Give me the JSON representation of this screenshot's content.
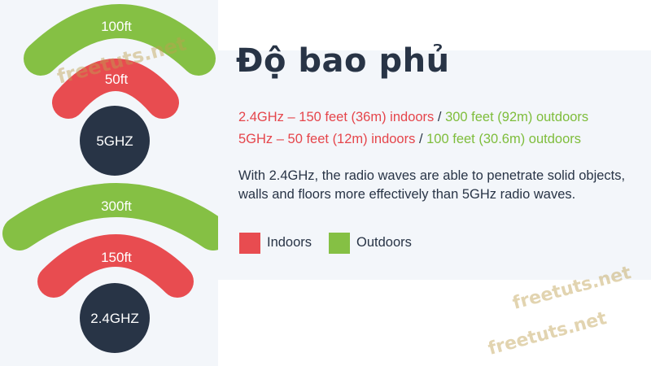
{
  "diagram": {
    "ghz5": {
      "outer_label": "100ft",
      "inner_label": "50ft",
      "center_label": "5GHZ"
    },
    "ghz24": {
      "outer_label": "300ft",
      "inner_label": "150ft",
      "center_label": "2.4GHZ"
    }
  },
  "content": {
    "title": "Độ bao phủ",
    "line1": {
      "indoor": "2.4GHz – 150 feet (36m) indoors",
      "separator": " / ",
      "outdoor": "300 feet (92m) outdoors"
    },
    "line2": {
      "indoor": "5GHz – 50 feet (12m) indoors",
      "separator": " / ",
      "outdoor": "100 feet (30.6m) outdoors"
    },
    "description": "With 2.4GHz, the radio waves are able to penetrate solid objects, walls and floors more effectively than 5GHz radio waves.",
    "legend": {
      "indoors": "Indoors",
      "outdoors": "Outdoors"
    }
  },
  "watermark": {
    "text1": "freetuts.net",
    "text2": "freetuts.net",
    "text3": "freetuts.net"
  },
  "colors": {
    "green": "#85c044",
    "red": "#e84c50",
    "navy": "#283446",
    "red_text": "#e5454b",
    "green_text": "#7ebd3b"
  }
}
